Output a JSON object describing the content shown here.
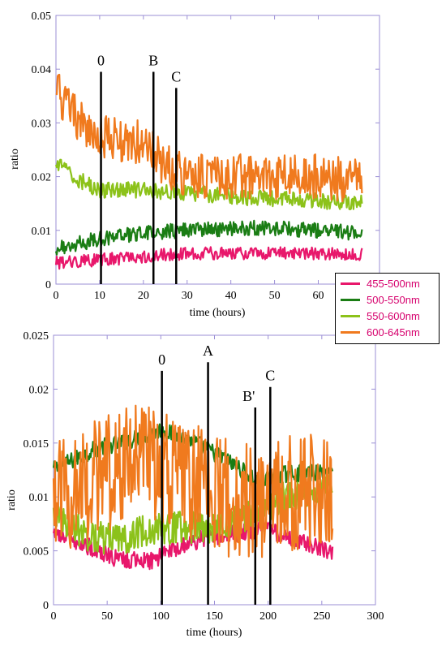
{
  "colors": {
    "s455": "#e8176b",
    "s500": "#1a7d14",
    "s550": "#8cc21a",
    "s600": "#f07a1e",
    "marker": "#000000",
    "frame": "#9b8fd6",
    "legend_text": "#d6006d"
  },
  "legend": [
    {
      "label": "455-500nm",
      "color": "#e8176b"
    },
    {
      "label": "500-550nm",
      "color": "#1a7d14"
    },
    {
      "label": "550-600nm",
      "color": "#8cc21a"
    },
    {
      "label": "600-645nm",
      "color": "#f07a1e"
    }
  ],
  "chart_data": [
    {
      "type": "line",
      "ylabel": "ratio",
      "xlabel": "time (hours)",
      "xlim": [
        0,
        74
      ],
      "ylim": [
        0,
        0.05
      ],
      "xticks": [
        "0",
        "10",
        "20",
        "30",
        "40",
        "50",
        "60"
      ],
      "yticks": [
        "0",
        "0.01",
        "0.02",
        "0.03",
        "0.04",
        "0.05"
      ],
      "markers": [
        {
          "label": "0",
          "x": 10.3,
          "y_top": 0.0395
        },
        {
          "label": "B",
          "x": 22.3,
          "y_top": 0.0395
        },
        {
          "label": "C",
          "x": 27.5,
          "y_top": 0.0365
        }
      ],
      "series": [
        {
          "name": "455-500nm",
          "noise": 0.0012,
          "points": [
            [
              0,
              0.004
            ],
            [
              10,
              0.0045
            ],
            [
              25,
              0.0055
            ],
            [
              40,
              0.0058
            ],
            [
              55,
              0.0058
            ],
            [
              70,
              0.0055
            ]
          ]
        },
        {
          "name": "500-550nm",
          "noise": 0.0014,
          "points": [
            [
              0,
              0.0065
            ],
            [
              10,
              0.0085
            ],
            [
              20,
              0.0095
            ],
            [
              30,
              0.01
            ],
            [
              45,
              0.0105
            ],
            [
              60,
              0.01
            ],
            [
              70,
              0.0095
            ]
          ]
        },
        {
          "name": "550-600nm",
          "noise": 0.0015,
          "points": [
            [
              0,
              0.0225
            ],
            [
              5,
              0.0195
            ],
            [
              10,
              0.0175
            ],
            [
              20,
              0.0175
            ],
            [
              30,
              0.017
            ],
            [
              45,
              0.016
            ],
            [
              60,
              0.0155
            ],
            [
              70,
              0.015
            ]
          ]
        },
        {
          "name": "600-645nm",
          "noise": 0.0042,
          "points": [
            [
              0,
              0.036
            ],
            [
              5,
              0.031
            ],
            [
              10,
              0.0275
            ],
            [
              20,
              0.0265
            ],
            [
              25,
              0.022
            ],
            [
              30,
              0.02
            ],
            [
              45,
              0.02
            ],
            [
              60,
              0.02
            ],
            [
              70,
              0.019
            ]
          ]
        }
      ]
    },
    {
      "type": "line",
      "ylabel": "ratio",
      "xlabel": "time (hours)",
      "xlim": [
        0,
        300
      ],
      "ylim": [
        0,
        0.025
      ],
      "xticks": [
        "0",
        "50",
        "100",
        "150",
        "200",
        "250",
        "300"
      ],
      "yticks": [
        "0",
        "0.005",
        "0.01",
        "0.015",
        "0.02",
        "0.025"
      ],
      "markers": [
        {
          "label": "0",
          "x": 101,
          "y_top": 0.0217
        },
        {
          "label": "A",
          "x": 144,
          "y_top": 0.0225
        },
        {
          "label": "B'",
          "x": 188,
          "y_top": 0.0183
        },
        {
          "label": "C",
          "x": 202,
          "y_top": 0.0202
        }
      ],
      "series": [
        {
          "name": "455-500nm",
          "noise": 0.0008,
          "points": [
            [
              0,
              0.0065
            ],
            [
              30,
              0.0055
            ],
            [
              60,
              0.0042
            ],
            [
              90,
              0.004
            ],
            [
              110,
              0.005
            ],
            [
              140,
              0.0062
            ],
            [
              180,
              0.0068
            ],
            [
              200,
              0.007
            ],
            [
              230,
              0.0058
            ],
            [
              260,
              0.0048
            ]
          ]
        },
        {
          "name": "500-550nm",
          "noise": 0.0008,
          "points": [
            [
              0,
              0.0125
            ],
            [
              40,
              0.0145
            ],
            [
              80,
              0.0155
            ],
            [
              100,
              0.0162
            ],
            [
              130,
              0.0152
            ],
            [
              160,
              0.0135
            ],
            [
              190,
              0.0115
            ],
            [
              220,
              0.0122
            ],
            [
              260,
              0.0122
            ]
          ]
        },
        {
          "name": "550-600nm",
          "noise": 0.0015,
          "points": [
            [
              0,
              0.0085
            ],
            [
              30,
              0.0065
            ],
            [
              60,
              0.006
            ],
            [
              90,
              0.007
            ],
            [
              120,
              0.0072
            ],
            [
              150,
              0.0072
            ],
            [
              180,
              0.0082
            ],
            [
              210,
              0.0098
            ],
            [
              260,
              0.0108
            ]
          ]
        },
        {
          "name": "600-645nm",
          "noise": 0.0055,
          "points": [
            [
              0,
              0.0095
            ],
            [
              30,
              0.0115
            ],
            [
              60,
              0.0125
            ],
            [
              90,
              0.0135
            ],
            [
              110,
              0.0125
            ],
            [
              140,
              0.011
            ],
            [
              170,
              0.0095
            ],
            [
              190,
              0.0095
            ],
            [
              220,
              0.0105
            ],
            [
              260,
              0.0112
            ]
          ]
        }
      ]
    }
  ]
}
